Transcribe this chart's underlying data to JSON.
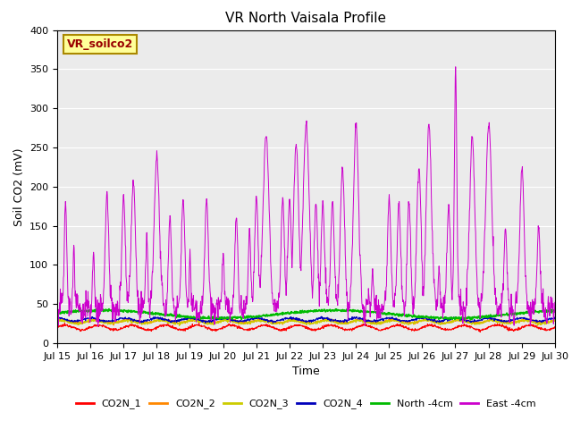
{
  "title": "VR North Vaisala Profile",
  "xlabel": "Time",
  "ylabel": "Soil CO2 (mV)",
  "ylim": [
    0,
    400
  ],
  "yticks": [
    0,
    50,
    100,
    150,
    200,
    250,
    300,
    350,
    400
  ],
  "n_days": 15,
  "points_per_day": 96,
  "colors": {
    "co2n1": "#ff0000",
    "co2n2": "#ff8800",
    "co2n3": "#cccc00",
    "co2n4": "#0000bb",
    "north4": "#00bb00",
    "east4": "#cc00cc"
  },
  "legend_labels": [
    "CO2N_1",
    "CO2N_2",
    "CO2N_3",
    "CO2N_4",
    "North -4cm",
    "East -4cm"
  ],
  "annotation_text": "VR_soilco2",
  "annotation_color": "#990000",
  "annotation_bg": "#ffff99",
  "annotation_border": "#aa8800",
  "background_color": "#ebebeb",
  "xtick_labels": [
    "Jul 15",
    "Jul 16",
    "Jul 17",
    "Jul 18",
    "Jul 19",
    "Jul 20",
    "Jul 21",
    "Jul 22",
    "Jul 23",
    "Jul 24",
    "Jul 25",
    "Jul 26",
    "Jul 27",
    "Jul 28",
    "Jul 29",
    "Jul 30"
  ],
  "title_fontsize": 11,
  "axis_label_fontsize": 9,
  "tick_fontsize": 8,
  "legend_fontsize": 8,
  "spike_days": [
    0.25,
    0.5,
    1.1,
    1.5,
    2.0,
    2.3,
    2.7,
    3.0,
    3.4,
    3.8,
    4.0,
    4.5,
    5.0,
    5.4,
    5.8,
    6.0,
    6.3,
    6.8,
    7.0,
    7.2,
    7.5,
    7.8,
    8.0,
    8.3,
    8.6,
    9.0,
    9.5,
    10.0,
    10.3,
    10.6,
    10.9,
    11.2,
    11.5,
    11.8,
    12.0,
    12.5,
    13.0,
    13.5,
    14.0,
    14.5
  ],
  "spike_heights": [
    180,
    125,
    120,
    195,
    190,
    207,
    135,
    240,
    160,
    185,
    115,
    185,
    115,
    165,
    143,
    187,
    265,
    185,
    185,
    255,
    280,
    181,
    180,
    183,
    225,
    280,
    95,
    185,
    180,
    183,
    225,
    280,
    95,
    175,
    350,
    265,
    280,
    148,
    222,
    148
  ],
  "spike_widths": [
    6,
    4,
    4,
    8,
    8,
    10,
    5,
    12,
    7,
    8,
    4,
    8,
    5,
    7,
    6,
    8,
    14,
    8,
    8,
    12,
    14,
    8,
    8,
    8,
    10,
    12,
    4,
    8,
    8,
    8,
    10,
    12,
    4,
    8,
    6,
    12,
    14,
    7,
    10,
    7
  ]
}
